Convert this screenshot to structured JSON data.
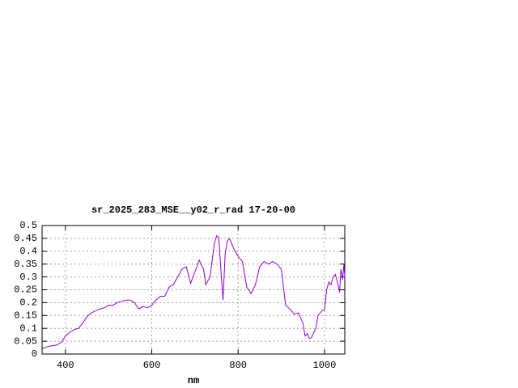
{
  "chart_data": {
    "type": "line",
    "title": "sr_2025_283_MSE__y02_r_rad 17-20-00",
    "x_label": "nm",
    "xlim": [
      346,
      1047
    ],
    "xticks": [
      400,
      600,
      800,
      1000
    ],
    "ylim": [
      0,
      0.5
    ],
    "yticks": [
      0,
      0.05,
      0.1,
      0.15,
      0.2,
      0.25,
      0.3,
      0.35,
      0.4,
      0.45,
      0.5
    ],
    "grid": true,
    "series": [
      {
        "color": "#9400d3",
        "x": [
          346,
          360,
          380,
          390,
          400,
          410,
          420,
          430,
          440,
          450,
          460,
          470,
          480,
          490,
          500,
          510,
          520,
          530,
          540,
          550,
          560,
          570,
          580,
          590,
          600,
          610,
          620,
          630,
          640,
          650,
          660,
          670,
          680,
          690,
          700,
          710,
          720,
          725,
          735,
          745,
          750,
          755,
          760,
          765,
          770,
          775,
          780,
          790,
          800,
          810,
          820,
          830,
          840,
          850,
          860,
          870,
          880,
          890,
          900,
          910,
          920,
          930,
          940,
          950,
          955,
          960,
          965,
          970,
          980,
          985,
          995,
          1000,
          1005,
          1010,
          1015,
          1020,
          1025,
          1030,
          1035,
          1038,
          1042,
          1045,
          1047
        ],
        "values": [
          0.02,
          0.03,
          0.035,
          0.045,
          0.07,
          0.085,
          0.095,
          0.1,
          0.12,
          0.145,
          0.16,
          0.168,
          0.175,
          0.18,
          0.19,
          0.19,
          0.2,
          0.205,
          0.21,
          0.21,
          0.2,
          0.175,
          0.185,
          0.18,
          0.19,
          0.21,
          0.225,
          0.225,
          0.26,
          0.27,
          0.3,
          0.33,
          0.34,
          0.275,
          0.32,
          0.365,
          0.33,
          0.27,
          0.3,
          0.43,
          0.46,
          0.455,
          0.33,
          0.21,
          0.39,
          0.44,
          0.45,
          0.41,
          0.38,
          0.36,
          0.26,
          0.235,
          0.27,
          0.34,
          0.36,
          0.35,
          0.36,
          0.35,
          0.33,
          0.19,
          0.175,
          0.155,
          0.16,
          0.12,
          0.07,
          0.08,
          0.06,
          0.065,
          0.1,
          0.15,
          0.17,
          0.17,
          0.25,
          0.28,
          0.27,
          0.3,
          0.31,
          0.28,
          0.24,
          0.33,
          0.29,
          0.35,
          0.3
        ]
      }
    ]
  }
}
